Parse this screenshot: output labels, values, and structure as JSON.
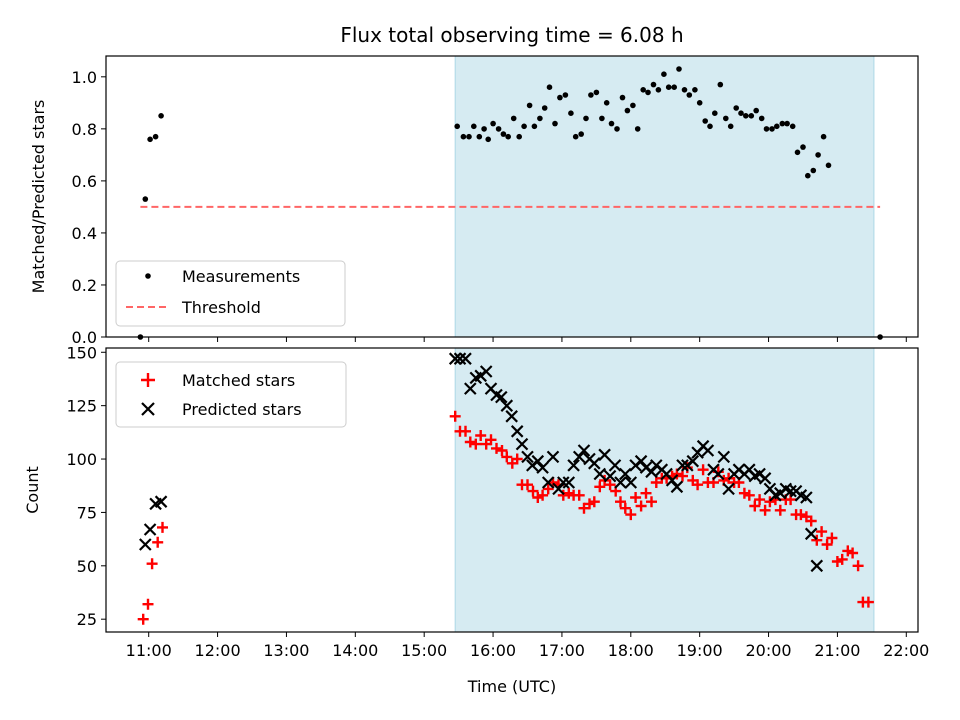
{
  "figure": {
    "title": "Flux total observing time = 6.08 h",
    "xlabel": "Time (UTC)"
  },
  "colors": {
    "measurement": "#000000",
    "threshold": "#ff6666",
    "shade": "#add8e6",
    "matched": "#ff0000",
    "predicted": "#000000"
  },
  "chart_data": [
    {
      "type": "scatter",
      "title": "Flux total observing time = 6.08 h",
      "xlabel": "",
      "ylabel": "Matched/Predicted stars",
      "xlim": [
        10.38,
        22.17
      ],
      "ylim": [
        0,
        1.08
      ],
      "xticks": [
        11,
        12,
        13,
        14,
        15,
        16,
        17,
        18,
        19,
        20,
        21,
        22
      ],
      "yticks": [
        0.0,
        0.2,
        0.4,
        0.6,
        0.8,
        1.0
      ],
      "ytick_labels": [
        "0.0",
        "0.2",
        "0.4",
        "0.6",
        "0.8",
        "1.0"
      ],
      "shaded_span": [
        15.45,
        21.53
      ],
      "legend": "lower-left",
      "series": [
        {
          "name": "Measurements",
          "marker": "dot",
          "points": [
            [
              10.88,
              0.0
            ],
            [
              10.95,
              0.53
            ],
            [
              11.02,
              0.76
            ],
            [
              11.1,
              0.77
            ],
            [
              11.18,
              0.85
            ],
            [
              15.48,
              0.81
            ],
            [
              15.57,
              0.77
            ],
            [
              15.65,
              0.77
            ],
            [
              15.72,
              0.81
            ],
            [
              15.8,
              0.77
            ],
            [
              15.87,
              0.8
            ],
            [
              15.93,
              0.76
            ],
            [
              16.0,
              0.82
            ],
            [
              16.08,
              0.8
            ],
            [
              16.15,
              0.78
            ],
            [
              16.22,
              0.77
            ],
            [
              16.3,
              0.84
            ],
            [
              16.38,
              0.77
            ],
            [
              16.45,
              0.81
            ],
            [
              16.53,
              0.89
            ],
            [
              16.6,
              0.81
            ],
            [
              16.68,
              0.84
            ],
            [
              16.75,
              0.88
            ],
            [
              16.82,
              0.96
            ],
            [
              16.9,
              0.82
            ],
            [
              16.97,
              0.92
            ],
            [
              17.05,
              0.93
            ],
            [
              17.13,
              0.86
            ],
            [
              17.2,
              0.77
            ],
            [
              17.28,
              0.78
            ],
            [
              17.35,
              0.84
            ],
            [
              17.42,
              0.93
            ],
            [
              17.5,
              0.94
            ],
            [
              17.58,
              0.84
            ],
            [
              17.65,
              0.9
            ],
            [
              17.72,
              0.82
            ],
            [
              17.8,
              0.8
            ],
            [
              17.88,
              0.92
            ],
            [
              17.95,
              0.87
            ],
            [
              18.03,
              0.89
            ],
            [
              18.1,
              0.8
            ],
            [
              18.18,
              0.95
            ],
            [
              18.25,
              0.94
            ],
            [
              18.33,
              0.97
            ],
            [
              18.4,
              0.95
            ],
            [
              18.48,
              1.01
            ],
            [
              18.55,
              0.96
            ],
            [
              18.63,
              0.96
            ],
            [
              18.7,
              1.03
            ],
            [
              18.78,
              0.95
            ],
            [
              18.85,
              0.93
            ],
            [
              18.93,
              0.95
            ],
            [
              19.0,
              0.9
            ],
            [
              19.08,
              0.83
            ],
            [
              19.15,
              0.81
            ],
            [
              19.22,
              0.86
            ],
            [
              19.3,
              0.97
            ],
            [
              19.38,
              0.84
            ],
            [
              19.45,
              0.81
            ],
            [
              19.53,
              0.88
            ],
            [
              19.6,
              0.86
            ],
            [
              19.67,
              0.85
            ],
            [
              19.75,
              0.85
            ],
            [
              19.82,
              0.87
            ],
            [
              19.9,
              0.84
            ],
            [
              19.97,
              0.8
            ],
            [
              20.05,
              0.8
            ],
            [
              20.12,
              0.81
            ],
            [
              20.2,
              0.82
            ],
            [
              20.27,
              0.82
            ],
            [
              20.35,
              0.81
            ],
            [
              20.42,
              0.71
            ],
            [
              20.5,
              0.73
            ],
            [
              20.57,
              0.62
            ],
            [
              20.65,
              0.64
            ],
            [
              20.72,
              0.7
            ],
            [
              20.8,
              0.77
            ],
            [
              20.87,
              0.66
            ],
            [
              21.62,
              0.0
            ]
          ]
        },
        {
          "name": "Threshold",
          "style": "dashed-line",
          "points": [
            [
              10.88,
              0.5
            ],
            [
              21.62,
              0.5
            ]
          ]
        }
      ]
    },
    {
      "type": "scatter",
      "xlabel": "Time (UTC)",
      "ylabel": "Count",
      "xlim": [
        10.38,
        22.17
      ],
      "ylim": [
        19,
        152
      ],
      "xticks": [
        11,
        12,
        13,
        14,
        15,
        16,
        17,
        18,
        19,
        20,
        21,
        22
      ],
      "xtick_labels": [
        "11:00",
        "12:00",
        "13:00",
        "14:00",
        "15:00",
        "16:00",
        "17:00",
        "18:00",
        "19:00",
        "20:00",
        "21:00",
        "22:00"
      ],
      "yticks": [
        25,
        50,
        75,
        100,
        125,
        150
      ],
      "ytick_labels": [
        "25",
        "50",
        "75",
        "100",
        "125",
        "150"
      ],
      "shaded_span": [
        15.45,
        21.53
      ],
      "legend": "upper-left",
      "series": [
        {
          "name": "Matched stars",
          "marker": "plus",
          "points": [
            [
              10.92,
              25
            ],
            [
              10.99,
              32
            ],
            [
              11.05,
              51
            ],
            [
              11.13,
              61
            ],
            [
              11.2,
              68
            ],
            [
              15.45,
              120
            ],
            [
              15.52,
              113
            ],
            [
              15.6,
              113
            ],
            [
              15.67,
              108
            ],
            [
              15.75,
              107
            ],
            [
              15.82,
              111
            ],
            [
              15.9,
              107
            ],
            [
              15.97,
              109
            ],
            [
              16.05,
              105
            ],
            [
              16.13,
              104
            ],
            [
              16.2,
              101
            ],
            [
              16.28,
              98
            ],
            [
              16.35,
              100
            ],
            [
              16.42,
              88
            ],
            [
              16.5,
              88
            ],
            [
              16.58,
              85
            ],
            [
              16.65,
              82
            ],
            [
              16.72,
              83
            ],
            [
              16.8,
              86
            ],
            [
              16.87,
              89
            ],
            [
              16.95,
              88
            ],
            [
              17.02,
              83
            ],
            [
              17.1,
              84
            ],
            [
              17.17,
              83
            ],
            [
              17.25,
              83
            ],
            [
              17.32,
              77
            ],
            [
              17.4,
              79
            ],
            [
              17.47,
              80
            ],
            [
              17.55,
              87
            ],
            [
              17.62,
              90
            ],
            [
              17.7,
              88
            ],
            [
              17.78,
              85
            ],
            [
              17.85,
              80
            ],
            [
              17.92,
              77
            ],
            [
              18.0,
              74
            ],
            [
              18.07,
              82
            ],
            [
              18.15,
              78
            ],
            [
              18.22,
              84
            ],
            [
              18.3,
              80
            ],
            [
              18.37,
              89
            ],
            [
              18.45,
              91
            ],
            [
              18.52,
              91
            ],
            [
              18.6,
              92
            ],
            [
              18.67,
              93
            ],
            [
              18.75,
              92
            ],
            [
              18.82,
              96
            ],
            [
              18.9,
              90
            ],
            [
              18.97,
              88
            ],
            [
              19.05,
              95
            ],
            [
              19.12,
              89
            ],
            [
              19.2,
              89
            ],
            [
              19.27,
              94
            ],
            [
              19.35,
              90
            ],
            [
              19.42,
              91
            ],
            [
              19.5,
              89
            ],
            [
              19.57,
              89
            ],
            [
              19.65,
              84
            ],
            [
              19.72,
              83
            ],
            [
              19.8,
              78
            ],
            [
              19.87,
              81
            ],
            [
              19.95,
              76
            ],
            [
              20.02,
              80
            ],
            [
              20.1,
              81
            ],
            [
              20.17,
              76
            ],
            [
              20.25,
              81
            ],
            [
              20.32,
              81
            ],
            [
              20.4,
              74
            ],
            [
              20.47,
              74
            ],
            [
              20.55,
              73
            ],
            [
              20.62,
              71
            ],
            [
              20.7,
              62
            ],
            [
              20.77,
              66
            ],
            [
              20.85,
              60
            ],
            [
              20.92,
              63
            ],
            [
              21.0,
              52
            ],
            [
              21.07,
              53
            ],
            [
              21.15,
              57
            ],
            [
              21.22,
              56
            ],
            [
              21.3,
              50
            ],
            [
              21.37,
              33
            ],
            [
              21.45,
              33
            ]
          ]
        },
        {
          "name": "Predicted stars",
          "marker": "x",
          "points": [
            [
              10.95,
              60
            ],
            [
              11.02,
              67
            ],
            [
              11.1,
              79
            ],
            [
              11.18,
              80
            ],
            [
              15.45,
              147
            ],
            [
              15.52,
              147
            ],
            [
              15.6,
              147
            ],
            [
              15.67,
              133
            ],
            [
              15.75,
              138
            ],
            [
              15.82,
              139
            ],
            [
              15.9,
              141
            ],
            [
              15.97,
              133
            ],
            [
              16.05,
              130
            ],
            [
              16.12,
              129
            ],
            [
              16.2,
              125
            ],
            [
              16.27,
              120
            ],
            [
              16.35,
              113
            ],
            [
              16.42,
              107
            ],
            [
              16.5,
              101
            ],
            [
              16.57,
              97
            ],
            [
              16.65,
              99
            ],
            [
              16.72,
              96
            ],
            [
              16.8,
              89
            ],
            [
              16.87,
              101
            ],
            [
              16.95,
              86
            ],
            [
              17.02,
              89
            ],
            [
              17.1,
              89
            ],
            [
              17.17,
              97
            ],
            [
              17.25,
              101
            ],
            [
              17.32,
              104
            ],
            [
              17.4,
              100
            ],
            [
              17.47,
              98
            ],
            [
              17.55,
              93
            ],
            [
              17.62,
              102
            ],
            [
              17.7,
              92
            ],
            [
              17.77,
              97
            ],
            [
              17.85,
              89
            ],
            [
              17.92,
              93
            ],
            [
              18.0,
              89
            ],
            [
              18.07,
              97
            ],
            [
              18.15,
              99
            ],
            [
              18.22,
              96
            ],
            [
              18.3,
              94
            ],
            [
              18.37,
              97
            ],
            [
              18.45,
              95
            ],
            [
              18.52,
              93
            ],
            [
              18.6,
              90
            ],
            [
              18.67,
              87
            ],
            [
              18.75,
              97
            ],
            [
              18.82,
              97
            ],
            [
              18.9,
              99
            ],
            [
              18.97,
              103
            ],
            [
              19.05,
              106
            ],
            [
              19.12,
              104
            ],
            [
              19.2,
              95
            ],
            [
              19.27,
              93
            ],
            [
              19.35,
              101
            ],
            [
              19.42,
              86
            ],
            [
              19.5,
              93
            ],
            [
              19.57,
              95
            ],
            [
              19.65,
              93
            ],
            [
              19.72,
              95
            ],
            [
              19.8,
              92
            ],
            [
              19.87,
              93
            ],
            [
              19.95,
              91
            ],
            [
              20.02,
              86
            ],
            [
              20.1,
              83
            ],
            [
              20.17,
              84
            ],
            [
              20.25,
              86
            ],
            [
              20.32,
              85
            ],
            [
              20.4,
              85
            ],
            [
              20.47,
              83
            ],
            [
              20.55,
              82
            ],
            [
              20.62,
              65
            ],
            [
              20.7,
              50
            ]
          ]
        }
      ]
    }
  ]
}
